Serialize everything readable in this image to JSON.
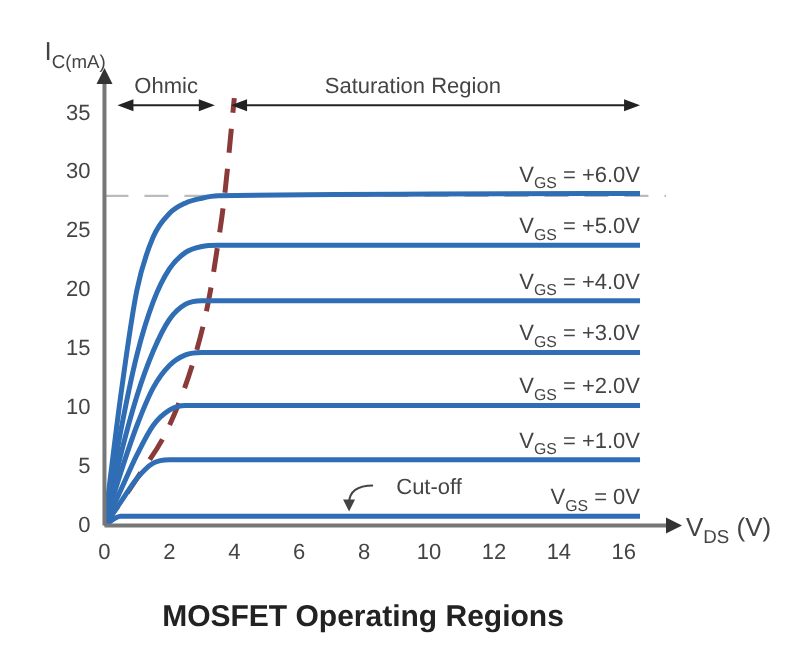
{
  "chart_data": {
    "type": "line",
    "title": "MOSFET Operating Regions",
    "xlabel": "V$_{DS}$ (V)",
    "ylabel": "I$_{C(mA)}$",
    "xlim": [
      0,
      17.3
    ],
    "ylim": [
      0,
      37.5
    ],
    "xticks": [
      0,
      2,
      4,
      6,
      8,
      10,
      12,
      14,
      16
    ],
    "yticks": [
      0,
      5,
      10,
      15,
      20,
      25,
      30,
      35
    ],
    "grid": false,
    "legend": false,
    "marker": "none",
    "series": [
      {
        "name": "V$_{GS}$ = +6.0V",
        "color": "#2f6db5",
        "x": [
          0,
          0.5,
          1,
          1.5,
          2,
          2.5,
          3,
          3.5,
          16.5
        ],
        "values": [
          0,
          11,
          20,
          24.5,
          26.5,
          27.4,
          27.8,
          28,
          28.2
        ]
      },
      {
        "name": "V$_{GS}$ = +5.0V",
        "color": "#2f6db5",
        "x": [
          0,
          0.5,
          1,
          1.5,
          2,
          2.5,
          3,
          3.5,
          16.5
        ],
        "values": [
          0,
          8,
          14.5,
          19,
          21.8,
          23.2,
          23.7,
          23.8,
          23.8
        ]
      },
      {
        "name": "V$_{GS}$ = +4.0V",
        "color": "#2f6db5",
        "x": [
          0,
          0.5,
          1,
          1.5,
          2,
          2.5,
          3,
          16.5
        ],
        "values": [
          0,
          6,
          11,
          14.8,
          17.5,
          18.8,
          19.1,
          19.1
        ]
      },
      {
        "name": "V$_{GS}$ = +3.0V",
        "color": "#2f6db5",
        "x": [
          0,
          0.5,
          1,
          1.5,
          2,
          2.5,
          3,
          16.5
        ],
        "values": [
          0,
          4.5,
          8.5,
          11.7,
          13.6,
          14.5,
          14.7,
          14.7
        ]
      },
      {
        "name": "V$_{GS}$ = +2.0V",
        "color": "#2f6db5",
        "x": [
          0,
          0.5,
          1,
          1.5,
          2,
          2.5,
          16.5
        ],
        "values": [
          0,
          3,
          6,
          8.5,
          9.8,
          10.2,
          10.2
        ]
      },
      {
        "name": "V$_{GS}$ = +1.0V",
        "color": "#2f6db5",
        "x": [
          0,
          0.5,
          1,
          1.5,
          2,
          16.5
        ],
        "values": [
          0,
          2,
          4,
          5.3,
          5.6,
          5.6
        ]
      },
      {
        "name": "V$_{GS}$ = 0V",
        "color": "#2f6db5",
        "x": [
          0,
          0.5,
          16.5
        ],
        "values": [
          0,
          0.8,
          0.8
        ]
      },
      {
        "color": "#8b3a3a",
        "line_style": "dashed",
        "x": [
          0,
          1,
          2,
          2.8,
          3.2,
          3.5,
          3.7,
          4.0
        ],
        "values": [
          0,
          4,
          8.5,
          14.5,
          19,
          24,
          28,
          36.3
        ]
      }
    ],
    "ref_lines": [
      {
        "axis": "y",
        "value": 28,
        "color": "#bbbbbb",
        "line_style": "dashed"
      }
    ],
    "annotations": [
      "Ohmic",
      "Saturation Region",
      "Cut-off"
    ]
  }
}
